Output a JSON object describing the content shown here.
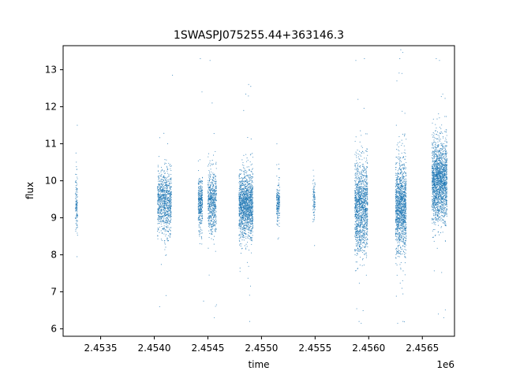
{
  "chart_data": {
    "type": "scatter",
    "title": "1SWASPJ075255.44+363146.3",
    "xlabel": "time",
    "ylabel": "flux",
    "x_offset_label": "1e6",
    "xlim": [
      2453150,
      2456800
    ],
    "ylim": [
      5.8,
      13.65
    ],
    "xticks": [
      2453500,
      2454000,
      2454500,
      2455000,
      2455500,
      2456000,
      2456500
    ],
    "xtick_labels": [
      "2.4535",
      "2.4540",
      "2.4545",
      "2.4550",
      "2.4555",
      "2.4560",
      "2.4565"
    ],
    "yticks": [
      6,
      7,
      8,
      9,
      10,
      11,
      12,
      13
    ],
    "ytick_labels": [
      "6",
      "7",
      "8",
      "9",
      "10",
      "11",
      "12",
      "13"
    ],
    "grid": false,
    "series_color": "#1f77b4",
    "clusters": [
      {
        "x": [
          2453265,
          2453285
        ],
        "y_center": 9.4,
        "y_spread": 0.55,
        "n": 120
      },
      {
        "x": [
          2454030,
          2454160
        ],
        "y_center": 9.4,
        "y_spread": 0.6,
        "n": 900
      },
      {
        "x": [
          2454410,
          2454450
        ],
        "y_center": 9.4,
        "y_spread": 0.5,
        "n": 350
      },
      {
        "x": [
          2454500,
          2454580
        ],
        "y_center": 9.4,
        "y_spread": 0.6,
        "n": 600
      },
      {
        "x": [
          2454790,
          2454920
        ],
        "y_center": 9.35,
        "y_spread": 0.6,
        "n": 1400
      },
      {
        "x": [
          2455140,
          2455170
        ],
        "y_center": 9.4,
        "y_spread": 0.4,
        "n": 200
      },
      {
        "x": [
          2455480,
          2455500
        ],
        "y_center": 9.5,
        "y_spread": 0.4,
        "n": 90
      },
      {
        "x": [
          2455870,
          2455990
        ],
        "y_center": 9.3,
        "y_spread": 0.85,
        "n": 1300
      },
      {
        "x": [
          2456250,
          2456350
        ],
        "y_center": 9.3,
        "y_spread": 0.85,
        "n": 1300
      },
      {
        "x": [
          2456590,
          2456730
        ],
        "y_center": 10.0,
        "y_spread": 0.75,
        "n": 1800
      }
    ],
    "outliers": [
      {
        "x": 2453270,
        "y": 10.75
      },
      {
        "x": 2453280,
        "y": 7.95
      },
      {
        "x": 2454050,
        "y": 6.6
      },
      {
        "x": 2454110,
        "y": 6.9
      },
      {
        "x": 2454170,
        "y": 12.85
      },
      {
        "x": 2454430,
        "y": 13.3
      },
      {
        "x": 2454445,
        "y": 12.4
      },
      {
        "x": 2454460,
        "y": 6.75
      },
      {
        "x": 2454520,
        "y": 13.25
      },
      {
        "x": 2454540,
        "y": 12.1
      },
      {
        "x": 2454560,
        "y": 6.3
      },
      {
        "x": 2454580,
        "y": 6.65
      },
      {
        "x": 2454800,
        "y": 7.55
      },
      {
        "x": 2454880,
        "y": 12.6
      },
      {
        "x": 2454900,
        "y": 12.55
      },
      {
        "x": 2454890,
        "y": 6.2
      },
      {
        "x": 2455160,
        "y": 10.45
      },
      {
        "x": 2455495,
        "y": 8.25
      },
      {
        "x": 2455880,
        "y": 13.25
      },
      {
        "x": 2455900,
        "y": 12.2
      },
      {
        "x": 2455960,
        "y": 13.3
      },
      {
        "x": 2455930,
        "y": 6.15
      },
      {
        "x": 2455910,
        "y": 6.2
      },
      {
        "x": 2456290,
        "y": 13.3
      },
      {
        "x": 2456310,
        "y": 12.9
      },
      {
        "x": 2456270,
        "y": 6.15
      },
      {
        "x": 2456320,
        "y": 6.2
      },
      {
        "x": 2456630,
        "y": 13.3
      },
      {
        "x": 2456660,
        "y": 13.25
      },
      {
        "x": 2456650,
        "y": 6.4
      },
      {
        "x": 2456700,
        "y": 6.3
      }
    ]
  }
}
